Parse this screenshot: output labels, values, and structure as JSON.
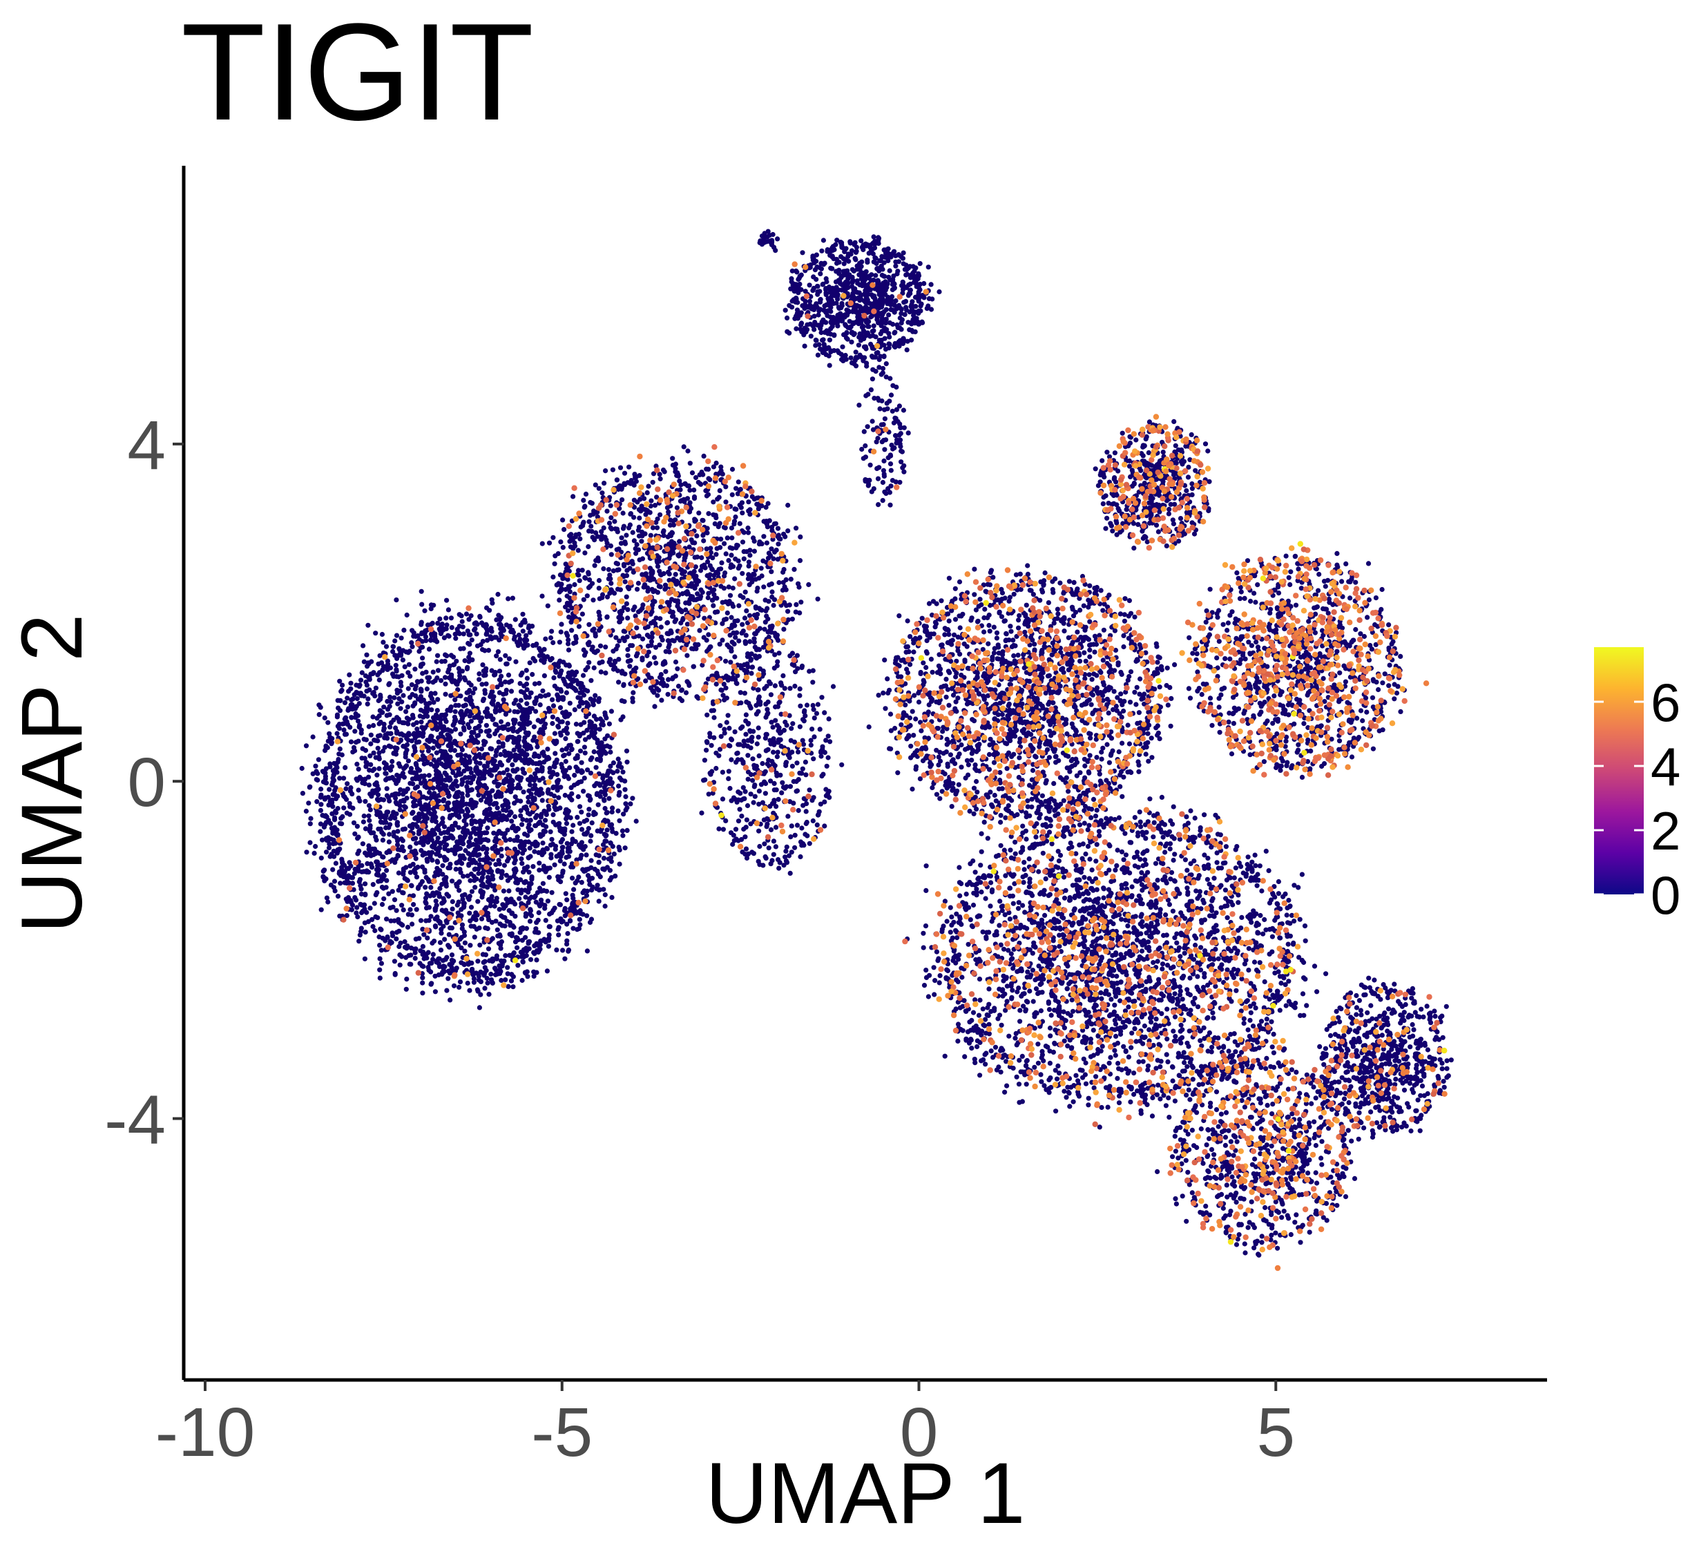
{
  "chart_data": {
    "type": "scatter",
    "title": "TIGIT",
    "xlabel": "UMAP 1",
    "ylabel": "UMAP 2",
    "xlim": [
      -10.3,
      8.8
    ],
    "ylim": [
      -7.1,
      7.3
    ],
    "x_ticks": [
      -10,
      -5,
      0,
      5
    ],
    "y_ticks": [
      -4,
      0,
      4
    ],
    "x_tick_labels": [
      "-10",
      "-5",
      "0",
      "5"
    ],
    "y_tick_labels": [
      "-4",
      "0",
      "4"
    ],
    "grid": false,
    "legend": {
      "type": "colorbar",
      "placement": "right",
      "range": [
        0,
        7.7
      ],
      "ticks": [
        0,
        2,
        4,
        6
      ],
      "tick_labels": [
        "0",
        "2",
        "4",
        "6"
      ],
      "colors": [
        "#0d0887",
        "#5c01a6",
        "#9c179e",
        "#cc4778",
        "#ed7953",
        "#fdb42f",
        "#f0f921"
      ]
    },
    "point_color_low": "#12006e",
    "point_color_high": "#f5e61c",
    "clusters": [
      {
        "cx": -6.3,
        "cy": -0.2,
        "sx": 1.9,
        "sy": 1.95,
        "n": 3800,
        "expr": 0.03
      },
      {
        "cx": -3.4,
        "cy": 2.4,
        "sx": 1.5,
        "sy": 1.25,
        "n": 1500,
        "expr": 0.14
      },
      {
        "cx": -2.1,
        "cy": 0.3,
        "sx": 0.8,
        "sy": 1.2,
        "n": 500,
        "expr": 0.05
      },
      {
        "cx": -0.85,
        "cy": 5.7,
        "sx": 0.85,
        "sy": 0.65,
        "n": 900,
        "expr": 0.01
      },
      {
        "cx": -0.5,
        "cy": 4.1,
        "sx": 0.3,
        "sy": 0.7,
        "n": 120,
        "expr": 0.02
      },
      {
        "cx": 1.5,
        "cy": 1.0,
        "sx": 1.7,
        "sy": 1.3,
        "n": 2200,
        "expr": 0.22
      },
      {
        "cx": 2.8,
        "cy": -2.1,
        "sx": 2.3,
        "sy": 1.55,
        "n": 3000,
        "expr": 0.2
      },
      {
        "cx": 3.3,
        "cy": 3.5,
        "sx": 0.7,
        "sy": 0.65,
        "n": 600,
        "expr": 0.33
      },
      {
        "cx": 5.3,
        "cy": 1.4,
        "sx": 1.3,
        "sy": 1.15,
        "n": 1400,
        "expr": 0.38
      },
      {
        "cx": 4.8,
        "cy": -4.4,
        "sx": 1.1,
        "sy": 1.0,
        "n": 900,
        "expr": 0.3
      },
      {
        "cx": 6.5,
        "cy": -3.3,
        "sx": 0.8,
        "sy": 0.8,
        "n": 700,
        "expr": 0.12
      },
      {
        "cx": -2.1,
        "cy": 6.4,
        "sx": 0.12,
        "sy": 0.1,
        "n": 25,
        "expr": 0.0
      }
    ]
  }
}
